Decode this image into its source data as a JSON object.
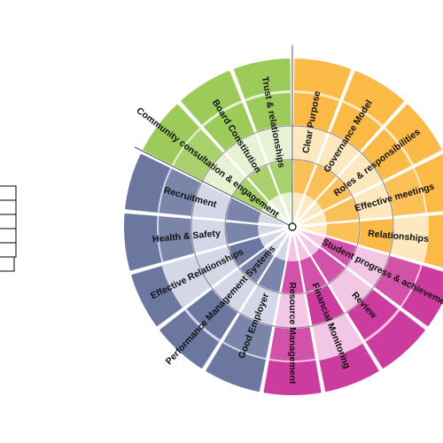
{
  "colors": {
    "green": "#9ccb5a",
    "green_light": "#e6f2d4",
    "orange": "#fbb946",
    "orange_light": "#fde8c0",
    "magenta": "#cc3c9f",
    "magenta_light": "#f2c6e4",
    "navy": "#6b779f",
    "navy_light": "#d3d7e6"
  },
  "wheel": {
    "segments": [
      {
        "label": "Clear Purpose",
        "group": "orange",
        "level": 4
      },
      {
        "label": "Governance Model",
        "group": "orange",
        "level": 4
      },
      {
        "label": "Roles & responsibilities",
        "group": "orange",
        "level": 4
      },
      {
        "label": "Effective meetings",
        "group": "orange",
        "level": 5
      },
      {
        "label": "Relationships",
        "group": "orange",
        "level": 3
      },
      {
        "label": "Student progress & achievement",
        "group": "magenta",
        "level": 5
      },
      {
        "label": "Review",
        "group": "magenta",
        "level": 4
      },
      {
        "label": "Financial Monitoring",
        "group": "magenta",
        "level": 3
      },
      {
        "label": "Resource Management",
        "group": "magenta",
        "level": 5
      },
      {
        "label": "Good Employer",
        "group": "navy",
        "level": 5
      },
      {
        "label": "Performance Management Systems",
        "group": "navy",
        "level": 4
      },
      {
        "label": "Effective Relationships",
        "group": "navy",
        "level": 2
      },
      {
        "label": "Health & Safety",
        "group": "navy",
        "level": 5
      },
      {
        "label": "Recruitment",
        "group": "navy",
        "level": 5
      },
      {
        "label": "Community consultation & engagement",
        "group": "green",
        "level": 5
      },
      {
        "label": "Board Constitution",
        "group": "green",
        "level": 4
      },
      {
        "label": "Trust & relationships",
        "group": "green",
        "level": 4
      }
    ]
  },
  "legend": {
    "rows": [
      "",
      "",
      "",
      "",
      "",
      ""
    ]
  }
}
